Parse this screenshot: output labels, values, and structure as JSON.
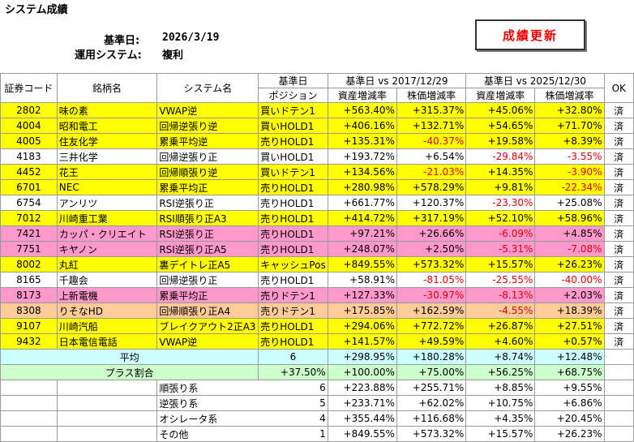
{
  "sheet": {
    "title": "システム成績",
    "date_label": "基準日:",
    "date_value": "2026/3/19",
    "system_label": "運用システム:",
    "system_value": "複利",
    "update_button": "成績更新"
  },
  "headers": {
    "code": "証券コード",
    "name": "銘柄名",
    "system": "システム名",
    "pos_top": "基準日",
    "pos_bottom": "ポジション",
    "period1": "基準日 vs 2017/12/29",
    "period2": "基準日 vs 2025/12/30",
    "asset": "資産増減率",
    "price": "株価増減率",
    "ok": "OK"
  },
  "rows": [
    {
      "code": "2802",
      "name": "味の素",
      "system": "VWAP逆",
      "position": "買いドテン1",
      "a1": "+563.40%",
      "p1": "+315.37%",
      "a2": "+45.06%",
      "p2": "+32.80%",
      "ok": "済",
      "color": "yellow",
      "a1neg": false,
      "p1neg": false,
      "a2neg": false,
      "p2neg": false
    },
    {
      "code": "4004",
      "name": "昭和電工",
      "system": "回帰逆張り逆",
      "position": "買いHOLD1",
      "a1": "+406.16%",
      "p1": "+132.71%",
      "a2": "+54.65%",
      "p2": "+71.70%",
      "ok": "済",
      "color": "yellow",
      "a1neg": false,
      "p1neg": false,
      "a2neg": false,
      "p2neg": false
    },
    {
      "code": "4005",
      "name": "住友化学",
      "system": "累乗平均逆",
      "position": "売りHOLD1",
      "a1": "+135.31%",
      "p1": "-40.37%",
      "a2": "+19.58%",
      "p2": "+8.39%",
      "ok": "済",
      "color": "yellow",
      "a1neg": false,
      "p1neg": true,
      "a2neg": false,
      "p2neg": false
    },
    {
      "code": "4183",
      "name": "三井化学",
      "system": "回帰逆張り正",
      "position": "買いHOLD1",
      "a1": "+193.72%",
      "p1": "+6.54%",
      "a2": "-29.84%",
      "p2": "-3.55%",
      "ok": "済",
      "color": "white",
      "a1neg": false,
      "p1neg": false,
      "a2neg": true,
      "p2neg": true
    },
    {
      "code": "4452",
      "name": "花王",
      "system": "回帰順張り逆",
      "position": "買いドテン1",
      "a1": "+134.56%",
      "p1": "-21.03%",
      "a2": "+14.35%",
      "p2": "-3.90%",
      "ok": "済",
      "color": "yellow",
      "a1neg": false,
      "p1neg": true,
      "a2neg": false,
      "p2neg": true
    },
    {
      "code": "6701",
      "name": "NEC",
      "system": "累乗平均正",
      "position": "売りHOLD1",
      "a1": "+280.98%",
      "p1": "+578.29%",
      "a2": "+9.81%",
      "p2": "-22.34%",
      "ok": "済",
      "color": "yellow",
      "a1neg": false,
      "p1neg": false,
      "a2neg": false,
      "p2neg": true
    },
    {
      "code": "6754",
      "name": "アンリツ",
      "system": "RSI逆張り正",
      "position": "売りHOLD1",
      "a1": "+661.77%",
      "p1": "+120.37%",
      "a2": "-23.30%",
      "p2": "+25.08%",
      "ok": "済",
      "color": "white",
      "a1neg": false,
      "p1neg": false,
      "a2neg": true,
      "p2neg": false
    },
    {
      "code": "7012",
      "name": "川崎重工業",
      "system": "RSI順張り正A3",
      "position": "売りHOLD1",
      "a1": "+414.72%",
      "p1": "+317.19%",
      "a2": "+52.10%",
      "p2": "+58.96%",
      "ok": "済",
      "color": "yellow",
      "a1neg": false,
      "p1neg": false,
      "a2neg": false,
      "p2neg": false
    },
    {
      "code": "7421",
      "name": "カッパ・クリエイト",
      "system": "RSI逆張り正",
      "position": "売りHOLD1",
      "a1": "+97.21%",
      "p1": "+26.66%",
      "a2": "-6.09%",
      "p2": "+4.85%",
      "ok": "済",
      "color": "pink",
      "a1neg": false,
      "p1neg": false,
      "a2neg": true,
      "p2neg": false
    },
    {
      "code": "7751",
      "name": "キヤノン",
      "system": "RSI逆張り正A5",
      "position": "売りHOLD1",
      "a1": "+248.07%",
      "p1": "+2.50%",
      "a2": "-5.31%",
      "p2": "-7.08%",
      "ok": "済",
      "color": "pink",
      "a1neg": false,
      "p1neg": false,
      "a2neg": true,
      "p2neg": true
    },
    {
      "code": "8002",
      "name": "丸紅",
      "system": "裏デイトレ正A5",
      "position": "キャッシュPos",
      "a1": "+849.55%",
      "p1": "+573.32%",
      "a2": "+15.57%",
      "p2": "+26.23%",
      "ok": "済",
      "color": "yellow",
      "a1neg": false,
      "p1neg": false,
      "a2neg": false,
      "p2neg": false
    },
    {
      "code": "8165",
      "name": "千趣会",
      "system": "回帰逆張り正",
      "position": "売りHOLD1",
      "a1": "+58.91%",
      "p1": "-81.05%",
      "a2": "-25.55%",
      "p2": "-40.00%",
      "ok": "済",
      "color": "white",
      "a1neg": false,
      "p1neg": true,
      "a2neg": true,
      "p2neg": true
    },
    {
      "code": "8173",
      "name": "上新電機",
      "system": "累乗平均正",
      "position": "売りドテン1",
      "a1": "+127.33%",
      "p1": "-30.97%",
      "a2": "-8.13%",
      "p2": "+2.03%",
      "ok": "済",
      "color": "pink",
      "a1neg": false,
      "p1neg": true,
      "a2neg": true,
      "p2neg": false
    },
    {
      "code": "8308",
      "name": "りそなHD",
      "system": "回帰順張り正A4",
      "position": "売りドテン1",
      "a1": "+175.85%",
      "p1": "+162.59%",
      "a2": "-4.55%",
      "p2": "+18.39%",
      "ok": "済",
      "color": "orange",
      "a1neg": false,
      "p1neg": false,
      "a2neg": true,
      "p2neg": false
    },
    {
      "code": "9107",
      "name": "川崎汽船",
      "system": "ブレイクアウト2正A3",
      "position": "売りHOLD1",
      "a1": "+294.06%",
      "p1": "+772.72%",
      "a2": "+26.87%",
      "p2": "+27.51%",
      "ok": "済",
      "color": "yellow",
      "a1neg": false,
      "p1neg": false,
      "a2neg": false,
      "p2neg": false
    },
    {
      "code": "9432",
      "name": "日本電信電話",
      "system": "VWAP逆",
      "position": "売りHOLD1",
      "a1": "+141.57%",
      "p1": "+49.59%",
      "a2": "+4.60%",
      "p2": "+0.57%",
      "ok": "済",
      "color": "yellow",
      "a1neg": false,
      "p1neg": false,
      "a2neg": false,
      "p2neg": false
    }
  ],
  "average": {
    "label": "平均",
    "position": "6",
    "a1": "+298.95%",
    "p1": "+180.28%",
    "a2": "+8.74%",
    "p2": "+12.48%"
  },
  "plus_ratio": {
    "label": "プラス割合",
    "position": "+37.50%",
    "a1": "+100.00%",
    "p1": "+75.00%",
    "a2": "+56.25%",
    "p2": "+68.75%"
  },
  "categories": [
    {
      "label": "順張り系",
      "count": "6",
      "a1": "+223.88%",
      "p1": "+255.71%",
      "a2": "+8.85%",
      "p2": "+9.55%"
    },
    {
      "label": "逆張り系",
      "count": "5",
      "a1": "+233.71%",
      "p1": "+62.02%",
      "a2": "+10.75%",
      "p2": "+6.86%"
    },
    {
      "label": "オシレータ系",
      "count": "4",
      "a1": "+355.44%",
      "p1": "+116.68%",
      "a2": "+4.35%",
      "p2": "+20.45%"
    },
    {
      "label": "その他",
      "count": "1",
      "a1": "+849.55%",
      "p1": "+573.32%",
      "a2": "+15.57%",
      "p2": "+26.23%"
    }
  ],
  "colors": {
    "yellow": "#ffff00",
    "pink": "#ff99cc",
    "orange": "#ffcc99",
    "average": "#ccffff",
    "plus": "#ccffcc",
    "negative": "#e00000"
  }
}
